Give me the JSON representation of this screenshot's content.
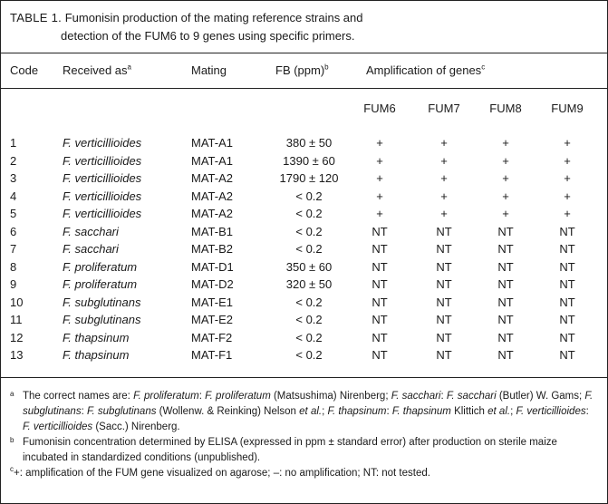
{
  "caption": {
    "label": "TABLE 1.",
    "line1": "Fumonisin production of the mating reference strains and",
    "line2": "detection of the FUM6 to 9 genes using specific primers."
  },
  "headers": {
    "code": "Code",
    "received_as": "Received as",
    "received_as_mark": "a",
    "mating": "Mating",
    "fb": "FB (ppm)",
    "fb_mark": "b",
    "amplification": "Amplification of genes",
    "amplification_mark": "c"
  },
  "gene_headers": [
    "FUM6",
    "FUM7",
    "FUM8",
    "FUM9"
  ],
  "rows": [
    {
      "code": "1",
      "received_as": "F. verticillioides",
      "mating": "MAT-A1",
      "fb": "380 ± 50",
      "fum6": "+",
      "fum7": "+",
      "fum8": "+",
      "fum9": "+"
    },
    {
      "code": "2",
      "received_as": "F. verticillioides",
      "mating": "MAT-A1",
      "fb": "1390 ± 60",
      "fum6": "+",
      "fum7": "+",
      "fum8": "+",
      "fum9": "+"
    },
    {
      "code": "3",
      "received_as": "F. verticillioides",
      "mating": "MAT-A2",
      "fb": "1790 ± 120",
      "fum6": "+",
      "fum7": "+",
      "fum8": "+",
      "fum9": "+"
    },
    {
      "code": "4",
      "received_as": "F. verticillioides",
      "mating": "MAT-A2",
      "fb": "< 0.2",
      "fum6": "+",
      "fum7": "+",
      "fum8": "+",
      "fum9": "+"
    },
    {
      "code": "5",
      "received_as": "F. verticillioides",
      "mating": "MAT-A2",
      "fb": "< 0.2",
      "fum6": "+",
      "fum7": "+",
      "fum8": "+",
      "fum9": "+"
    },
    {
      "code": "6",
      "received_as": "F. sacchari",
      "mating": "MAT-B1",
      "fb": "< 0.2",
      "fum6": "NT",
      "fum7": "NT",
      "fum8": "NT",
      "fum9": "NT"
    },
    {
      "code": "7",
      "received_as": "F. sacchari",
      "mating": "MAT-B2",
      "fb": "< 0.2",
      "fum6": "NT",
      "fum7": "NT",
      "fum8": "NT",
      "fum9": "NT"
    },
    {
      "code": "8",
      "received_as": "F. proliferatum",
      "mating": "MAT-D1",
      "fb": "350 ± 60",
      "fum6": "NT",
      "fum7": "NT",
      "fum8": "NT",
      "fum9": "NT"
    },
    {
      "code": "9",
      "received_as": "F. proliferatum",
      "mating": "MAT-D2",
      "fb": "320 ± 50",
      "fum6": "NT",
      "fum7": "NT",
      "fum8": "NT",
      "fum9": "NT"
    },
    {
      "code": "10",
      "received_as": "F. subglutinans",
      "mating": "MAT-E1",
      "fb": "< 0.2",
      "fum6": "NT",
      "fum7": "NT",
      "fum8": "NT",
      "fum9": "NT"
    },
    {
      "code": "11",
      "received_as": "F. subglutinans",
      "mating": "MAT-E2",
      "fb": "< 0.2",
      "fum6": "NT",
      "fum7": "NT",
      "fum8": "NT",
      "fum9": "NT"
    },
    {
      "code": "12",
      "received_as": "F. thapsinum",
      "mating": "MAT-F2",
      "fb": "< 0.2",
      "fum6": "NT",
      "fum7": "NT",
      "fum8": "NT",
      "fum9": "NT"
    },
    {
      "code": "13",
      "received_as": "F. thapsinum",
      "mating": "MAT-F1",
      "fb": "< 0.2",
      "fum6": "NT",
      "fum7": "NT",
      "fum8": "NT",
      "fum9": "NT"
    }
  ],
  "footnotes": {
    "a": {
      "mark": "a",
      "parts": [
        {
          "t": "The correct names are: ",
          "i": false
        },
        {
          "t": "F. proliferatum",
          "i": true
        },
        {
          "t": ": ",
          "i": false
        },
        {
          "t": "F. proliferatum",
          "i": true
        },
        {
          "t": " (Matsushima) Nirenberg; ",
          "i": false
        },
        {
          "t": "F. sacchari",
          "i": true
        },
        {
          "t": ": ",
          "i": false
        },
        {
          "t": "F. sacchari",
          "i": true
        },
        {
          "t": " (Butler) W. Gams; ",
          "i": false
        },
        {
          "t": "F. subglutinans",
          "i": true
        },
        {
          "t": ": ",
          "i": false
        },
        {
          "t": "F. subglutinans",
          "i": true
        },
        {
          "t": " (Wollenw. & Reinking) Nelson ",
          "i": false
        },
        {
          "t": "et al.",
          "i": true
        },
        {
          "t": "; ",
          "i": false
        },
        {
          "t": "F. thapsinum",
          "i": true
        },
        {
          "t": ": ",
          "i": false
        },
        {
          "t": "F. thapsinum",
          "i": true
        },
        {
          "t": " Klittich ",
          "i": false
        },
        {
          "t": "et al.",
          "i": true
        },
        {
          "t": "; ",
          "i": false
        },
        {
          "t": "F. verticillioides",
          "i": true
        },
        {
          "t": ": ",
          "i": false
        },
        {
          "t": "F. verticillioides",
          "i": true
        },
        {
          "t": " (Sacc.) Nirenberg.",
          "i": false
        }
      ]
    },
    "b": {
      "mark": "b",
      "text": "Fumonisin concentration determined by ELISA (expressed in ppm ± standard error) after production on sterile maize incubated in standardized conditions (unpublished)."
    },
    "c": {
      "mark": "c",
      "text": "+: amplification of the FUM gene visualized on agarose; –: no amplification; NT: not tested."
    }
  }
}
